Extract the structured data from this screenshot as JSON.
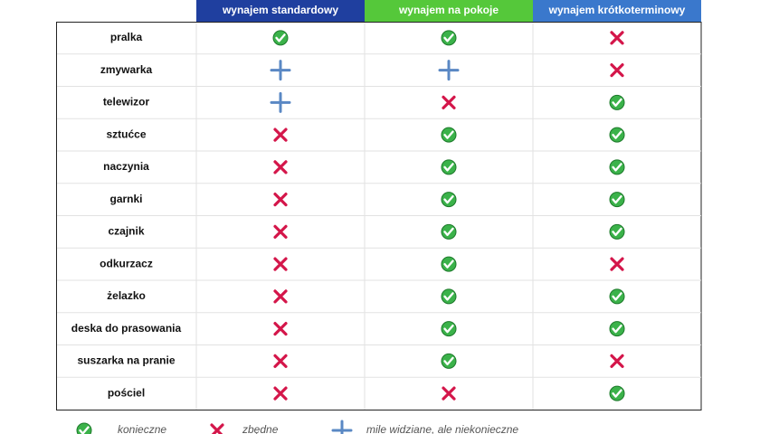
{
  "header": {
    "columns": [
      "wynajem standardowy",
      "wynajem na pokoje",
      "wynajem krótkoterminowy"
    ]
  },
  "legend": [
    "konieczne",
    "zbędne",
    "mile widziane, ale niekonieczne"
  ],
  "table": {
    "rows": [
      {
        "label": "pralka",
        "cells": [
          0,
          0,
          1
        ]
      },
      {
        "label": "zmywarka",
        "cells": [
          2,
          2,
          1
        ]
      },
      {
        "label": "telewizor",
        "cells": [
          2,
          1,
          0
        ]
      },
      {
        "label": "sztućce",
        "cells": [
          1,
          0,
          0
        ]
      },
      {
        "label": "naczynia",
        "cells": [
          1,
          0,
          0
        ]
      },
      {
        "label": "garnki",
        "cells": [
          1,
          0,
          0
        ]
      },
      {
        "label": "czajnik",
        "cells": [
          1,
          0,
          0
        ]
      },
      {
        "label": "odkurzacz",
        "cells": [
          1,
          0,
          1
        ]
      },
      {
        "label": "żelazko",
        "cells": [
          1,
          0,
          0
        ]
      },
      {
        "label": "deska do prasowania",
        "cells": [
          1,
          0,
          0
        ]
      },
      {
        "label": "suszarka na pranie",
        "cells": [
          1,
          0,
          1
        ]
      },
      {
        "label": "pościel",
        "cells": [
          1,
          1,
          0
        ]
      }
    ]
  }
}
